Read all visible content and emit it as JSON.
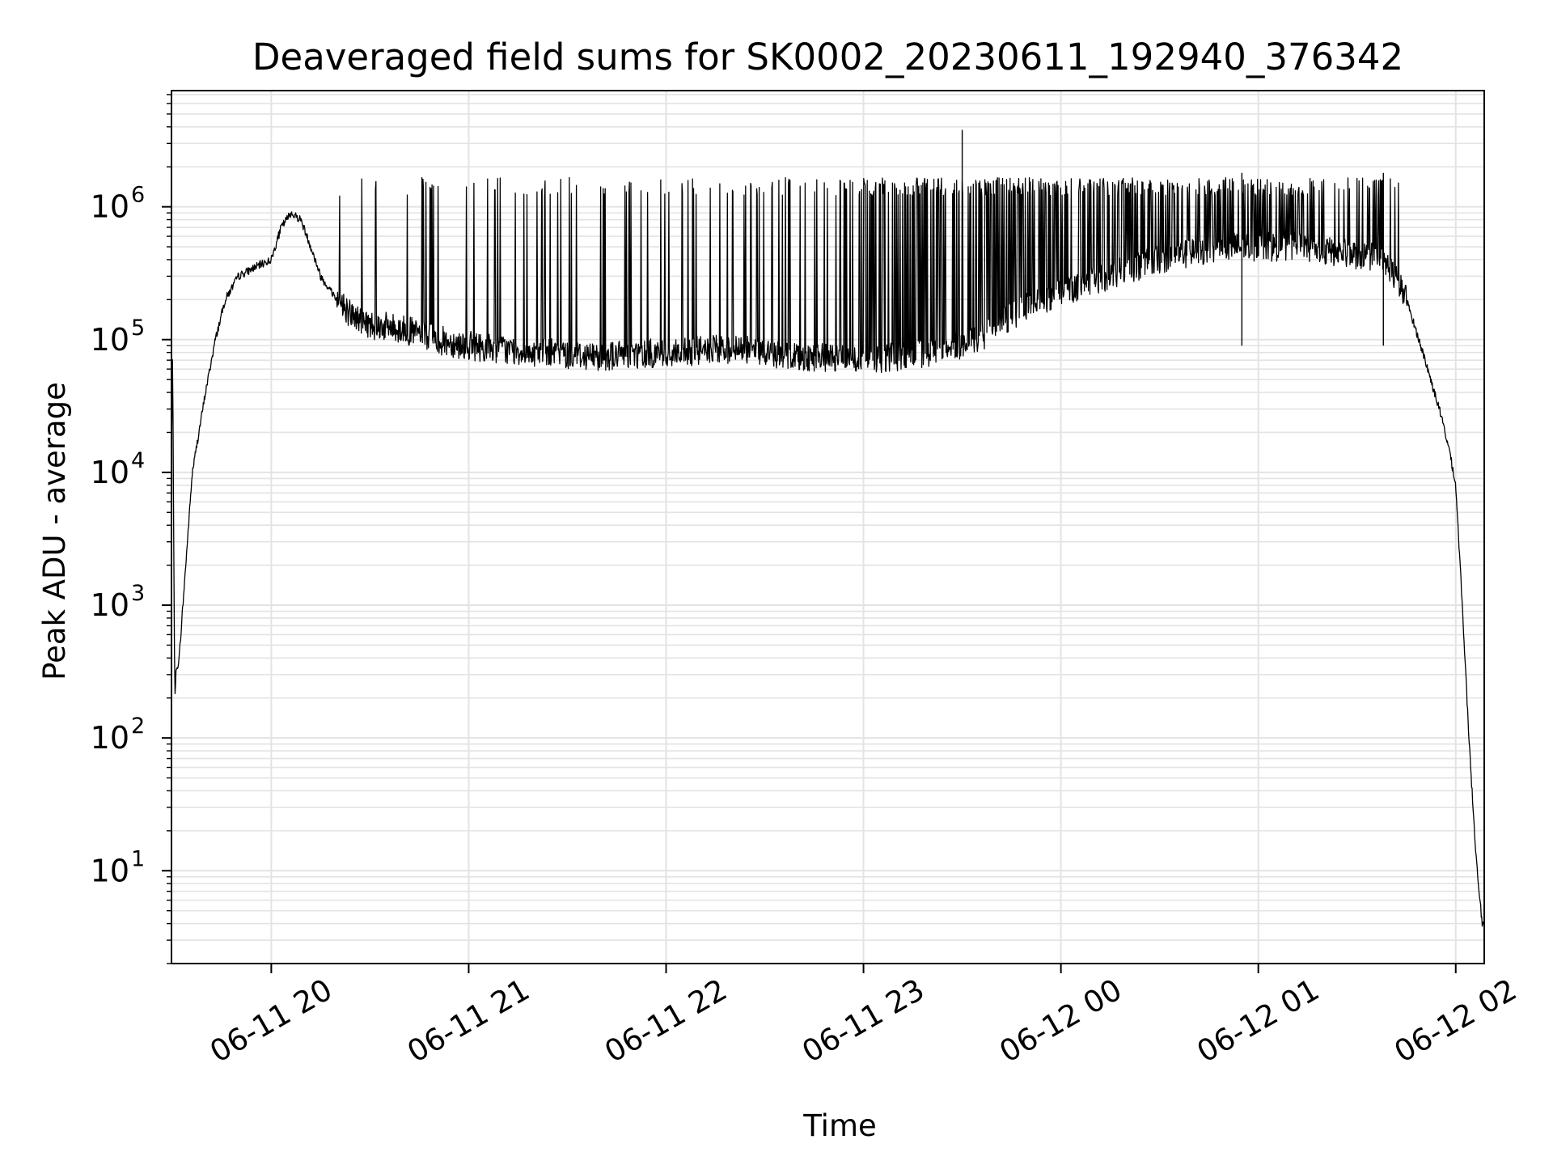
{
  "chart_data": {
    "type": "line",
    "title": "Deaveraged field sums for SK0002_20230611_192940_376342",
    "xlabel": "Time",
    "ylabel": "Peak ADU - average",
    "yscale": "log",
    "ylim": [
      2,
      7500000
    ],
    "xlim": [
      "2023-06-11 19:29:40",
      "2023-06-12 02:08:40"
    ],
    "grid": "on (major and minor, light gray)",
    "line_color": "#000000",
    "x_ticks": [
      {
        "value": "2023-06-11 20:00",
        "label": "06-11 20"
      },
      {
        "value": "2023-06-11 21:00",
        "label": "06-11 21"
      },
      {
        "value": "2023-06-11 22:00",
        "label": "06-11 22"
      },
      {
        "value": "2023-06-11 23:00",
        "label": "06-11 23"
      },
      {
        "value": "2023-06-12 00:00",
        "label": "06-12 00"
      },
      {
        "value": "2023-06-12 01:00",
        "label": "06-12 01"
      },
      {
        "value": "2023-06-12 02:00",
        "label": "06-12 02"
      }
    ],
    "y_ticks": [
      {
        "value": 10,
        "base": "10",
        "exp": "1"
      },
      {
        "value": 100,
        "base": "10",
        "exp": "2"
      },
      {
        "value": 1000,
        "base": "10",
        "exp": "3"
      },
      {
        "value": 10000,
        "base": "10",
        "exp": "4"
      },
      {
        "value": 100000,
        "base": "10",
        "exp": "5"
      },
      {
        "value": 1000000,
        "base": "10",
        "exp": "6"
      }
    ],
    "series": [
      {
        "x": [
          "2023-06-11 19:29:40",
          "2023-06-11 19:30:00",
          "2023-06-11 19:30:40",
          "2023-06-11 19:31:00",
          "2023-06-11 19:32:00",
          "2023-06-11 19:34:00",
          "2023-06-11 19:36:00",
          "2023-06-11 19:38:00",
          "2023-06-11 19:40:00",
          "2023-06-11 19:43:00",
          "2023-06-11 19:46:00",
          "2023-06-11 19:50:00",
          "2023-06-11 19:55:00",
          "2023-06-11 20:00:00",
          "2023-06-11 20:03:00",
          "2023-06-11 20:06:00",
          "2023-06-11 20:09:00",
          "2023-06-11 20:12:00",
          "2023-06-11 20:15:00",
          "2023-06-11 20:20:00",
          "2023-06-11 20:25:00",
          "2023-06-11 20:30:00",
          "2023-06-11 20:40:00",
          "2023-06-11 20:50:00",
          "2023-06-11 21:00:00",
          "2023-06-11 21:20:00",
          "2023-06-11 21:40:00",
          "2023-06-11 22:00:00",
          "2023-06-11 22:20:00",
          "2023-06-11 22:40:00",
          "2023-06-11 23:00:00",
          "2023-06-11 23:20:00",
          "2023-06-11 23:35:00",
          "2023-06-11 23:50:00",
          "2023-06-12 00:10:00",
          "2023-06-12 00:30:00",
          "2023-06-12 00:50:00",
          "2023-06-12 01:10:00",
          "2023-06-12 01:25:00",
          "2023-06-12 01:35:00",
          "2023-06-12 01:40:00",
          "2023-06-12 01:45:00",
          "2023-06-12 01:50:00",
          "2023-06-12 01:55:00",
          "2023-06-12 01:58:00",
          "2023-06-12 02:00:00",
          "2023-06-12 02:02:00",
          "2023-06-12 02:04:00",
          "2023-06-12 02:06:00",
          "2023-06-12 02:08:00",
          "2023-06-12 02:08:40"
        ],
        "y": [
          12000,
          80000,
          200,
          300,
          400,
          2000,
          10000,
          20000,
          40000,
          100000,
          200000,
          300000,
          350000,
          400000,
          700000,
          900000,
          800000,
          500000,
          300000,
          200000,
          150000,
          130000,
          120000,
          100000,
          90000,
          80000,
          75000,
          80000,
          85000,
          75000,
          70000,
          80000,
          100000,
          180000,
          280000,
          400000,
          500000,
          500000,
          450000,
          420000,
          350000,
          200000,
          80000,
          30000,
          15000,
          8000,
          1000,
          100,
          15,
          4,
          4
        ]
      }
    ]
  }
}
